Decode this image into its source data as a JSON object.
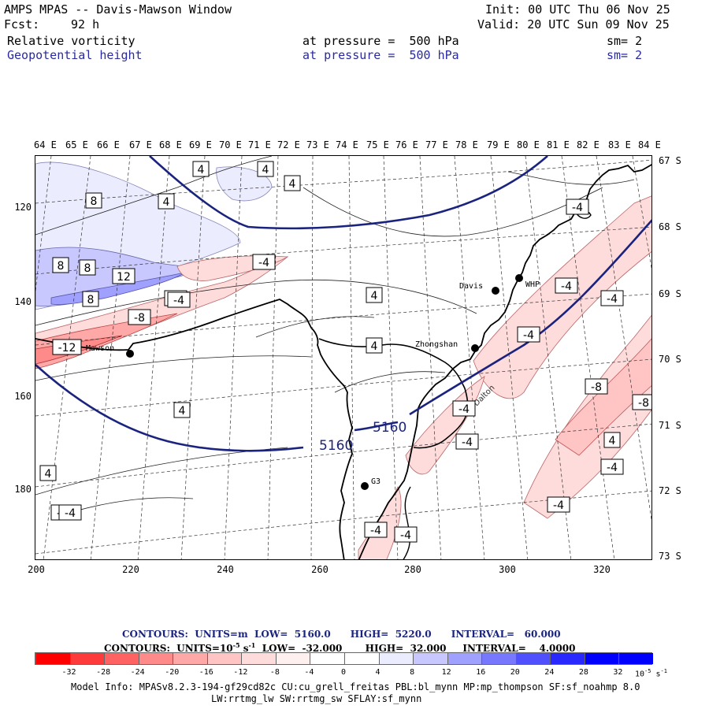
{
  "header": {
    "title": "AMPS MPAS -- Davis-Mawson Window",
    "init": "Init: 00 UTC Thu 06 Nov 25",
    "fcst_label": "Fcst:",
    "fcst_value": "92 h",
    "valid": "Valid: 20 UTC Sun 09 Nov 25",
    "field1": {
      "name": "Relative vorticity",
      "pressure": "at pressure =  500 hPa",
      "sm": "sm= 2"
    },
    "field2": {
      "name": "Geopotential height",
      "pressure": "at pressure =  500 hPa",
      "sm": "sm= 2"
    }
  },
  "axes": {
    "top_lon": [
      "64 E",
      "65 E",
      "66 E",
      "67 E",
      "68 E",
      "69 E",
      "70 E",
      "71 E",
      "72 E",
      "73 E",
      "74 E",
      "75 E",
      "76 E",
      "77 E",
      "78 E",
      "79 E",
      "80 E",
      "81 E",
      "82 E",
      "83 E",
      "84 E"
    ],
    "right_lat": [
      "67 S",
      "68 S",
      "69 S",
      "70 S",
      "71 S",
      "72 S",
      "73 S"
    ],
    "left_y": [
      "120",
      "140",
      "160",
      "180"
    ],
    "bottom_x": [
      "200",
      "220",
      "240",
      "260",
      "280",
      "300",
      "320"
    ]
  },
  "map": {
    "stations": [
      {
        "name": "Mawson",
        "label": "Mawson"
      },
      {
        "name": "Davis",
        "label": "Davis"
      },
      {
        "name": "WHP",
        "label": "WHP"
      },
      {
        "name": "Zhongshan",
        "label": "Zhongshan"
      },
      {
        "name": "G3",
        "label": "G3"
      }
    ],
    "place_text": "Dalton",
    "height_contour_labels": [
      "5160",
      "5160"
    ],
    "vorticity_labels": [
      "4",
      "8",
      "4",
      "4",
      "4",
      "8",
      "-4",
      "8",
      "-4",
      "12",
      "8",
      "-4",
      "-8",
      "-12",
      "4",
      "4",
      "4",
      "-4",
      "-4",
      "-4",
      "-4",
      "-4",
      "-8",
      "-8",
      "4",
      "-4",
      "-4",
      "-4",
      "-4",
      "4",
      "-4",
      "-4",
      "-4"
    ]
  },
  "legend": {
    "contours1": "CONTOURS:  UNITS=m  LOW=  5160.0      HIGH=  5220.0      INTERVAL=   60.000",
    "contours2_a": "CONTOURS:  UNITS=10",
    "contours2_exp1": "-5",
    "contours2_b": " s",
    "contours2_exp2": "-1",
    "contours2_c": "  LOW=  -32.000       HIGH=  32.000     INTERVAL=    4.0000",
    "colorbar_ticks": [
      "-32",
      "-28",
      "-24",
      "-20",
      "-16",
      "-12",
      "-8",
      "-4",
      "0",
      "4",
      "8",
      "12",
      "16",
      "20",
      "24",
      "28",
      "32"
    ],
    "colorbar_units": "10",
    "colorbar_units_exp1": "-5",
    "colorbar_units_s": " s",
    "colorbar_units_exp2": "-1",
    "colorbar_colors": [
      "#ff0000",
      "#ff3a3a",
      "#ff6262",
      "#ff8a8a",
      "#ffa8a8",
      "#ffc4c4",
      "#ffdcdc",
      "#fff0f0",
      "#ffffff",
      "#ffffff",
      "#ececff",
      "#c8c8ff",
      "#a0a0ff",
      "#7878ff",
      "#5050ff",
      "#2828ff",
      "#0000ff",
      "#0000ff"
    ]
  },
  "footer": {
    "line1": "Model Info: MPASv8.2.3-194-gf29cd82c CU:cu_grell_freitas PBL:bl_mynn MP:mp_thompson SF:sf_noahmp 8.0",
    "line2": "LW:rrtmg_lw SW:rrtmg_sw SFLAY:sf_mynn"
  }
}
